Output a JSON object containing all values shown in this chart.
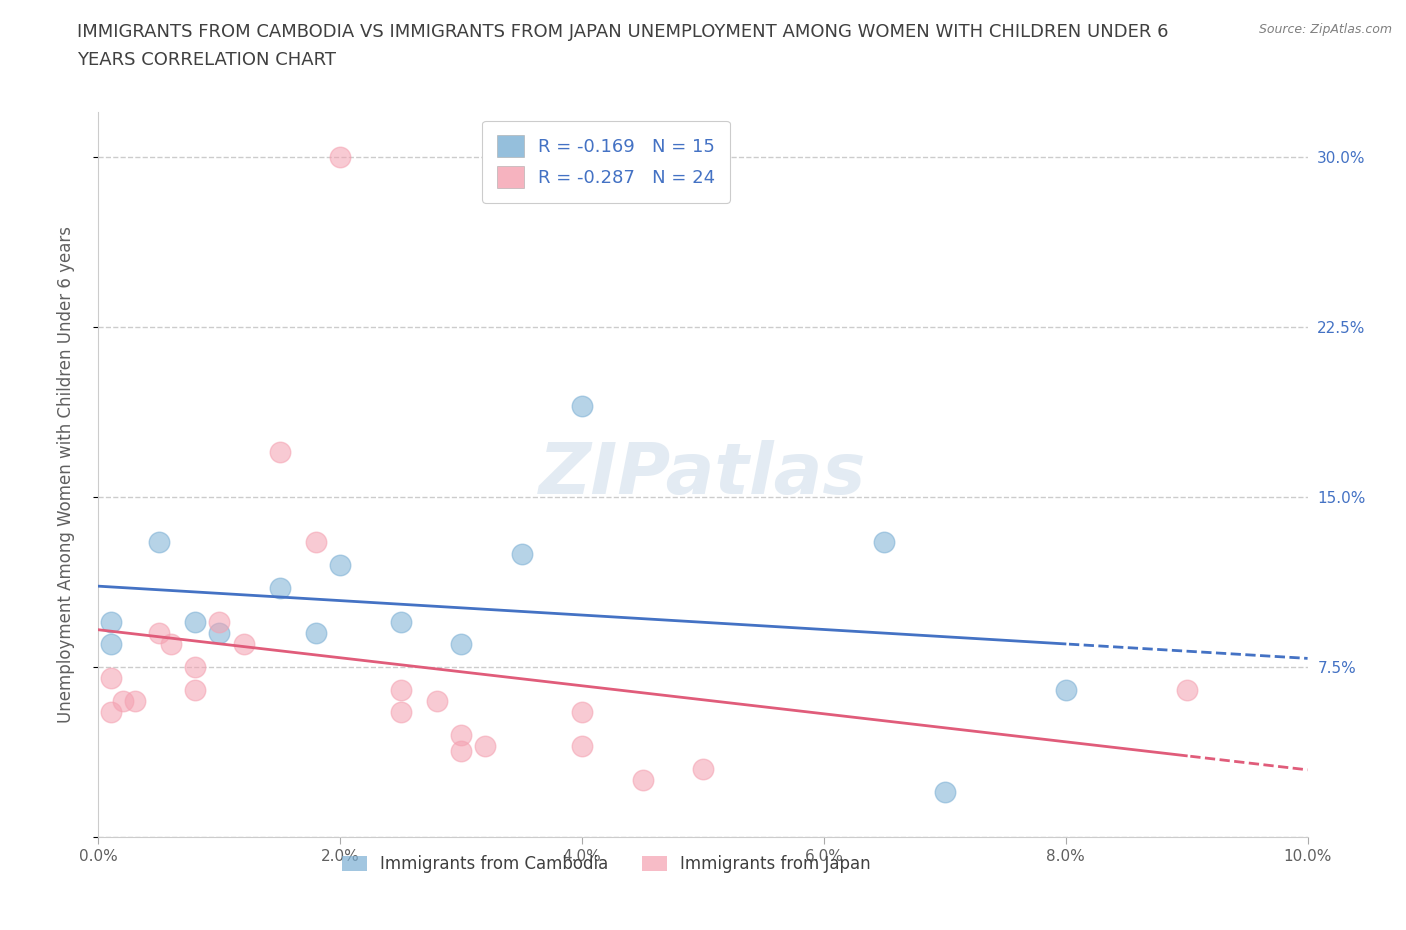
{
  "title_line1": "IMMIGRANTS FROM CAMBODIA VS IMMIGRANTS FROM JAPAN UNEMPLOYMENT AMONG WOMEN WITH CHILDREN UNDER 6",
  "title_line2": "YEARS CORRELATION CHART",
  "source": "Source: ZipAtlas.com",
  "ylabel": "Unemployment Among Women with Children Under 6 years",
  "xlim": [
    0.0,
    0.1
  ],
  "ylim": [
    0.0,
    0.32
  ],
  "xticks": [
    0.0,
    0.02,
    0.04,
    0.06,
    0.08,
    0.1
  ],
  "xtick_labels": [
    "0.0%",
    "2.0%",
    "4.0%",
    "6.0%",
    "8.0%",
    "10.0%"
  ],
  "yticks": [
    0.0,
    0.075,
    0.15,
    0.225,
    0.3
  ],
  "ytick_labels": [
    "",
    "7.5%",
    "15.0%",
    "22.5%",
    "30.0%"
  ],
  "grid_color": "#cccccc",
  "background_color": "#ffffff",
  "cambodia_color": "#7bafd4",
  "japan_color": "#f4a0b0",
  "cambodia_line_color": "#4472c4",
  "japan_line_color": "#e05c7a",
  "cambodia_R": -0.169,
  "cambodia_N": 15,
  "japan_R": -0.287,
  "japan_N": 24,
  "cambodia_x": [
    0.001,
    0.001,
    0.005,
    0.008,
    0.01,
    0.015,
    0.018,
    0.02,
    0.025,
    0.03,
    0.035,
    0.04,
    0.065,
    0.07,
    0.08
  ],
  "cambodia_y": [
    0.085,
    0.095,
    0.13,
    0.095,
    0.09,
    0.11,
    0.09,
    0.12,
    0.095,
    0.085,
    0.125,
    0.19,
    0.13,
    0.02,
    0.065
  ],
  "japan_x": [
    0.001,
    0.001,
    0.002,
    0.003,
    0.005,
    0.006,
    0.008,
    0.008,
    0.01,
    0.012,
    0.015,
    0.018,
    0.02,
    0.025,
    0.025,
    0.028,
    0.03,
    0.03,
    0.032,
    0.04,
    0.04,
    0.045,
    0.05,
    0.09
  ],
  "japan_y": [
    0.07,
    0.055,
    0.06,
    0.06,
    0.09,
    0.085,
    0.075,
    0.065,
    0.095,
    0.085,
    0.17,
    0.13,
    0.3,
    0.065,
    0.055,
    0.06,
    0.045,
    0.038,
    0.04,
    0.055,
    0.04,
    0.025,
    0.03,
    0.065
  ],
  "title_color": "#404040",
  "axis_label_color": "#606060",
  "tick_color_right": "#4472c4",
  "legend_label_color": "#4472c4",
  "source_color": "#808080",
  "watermark_text": "ZIPatlas",
  "legend_top_labels": [
    "R = -0.169   N = 15",
    "R = -0.287   N = 24"
  ],
  "legend_bottom_labels": [
    "Immigrants from Cambodia",
    "Immigrants from Japan"
  ]
}
